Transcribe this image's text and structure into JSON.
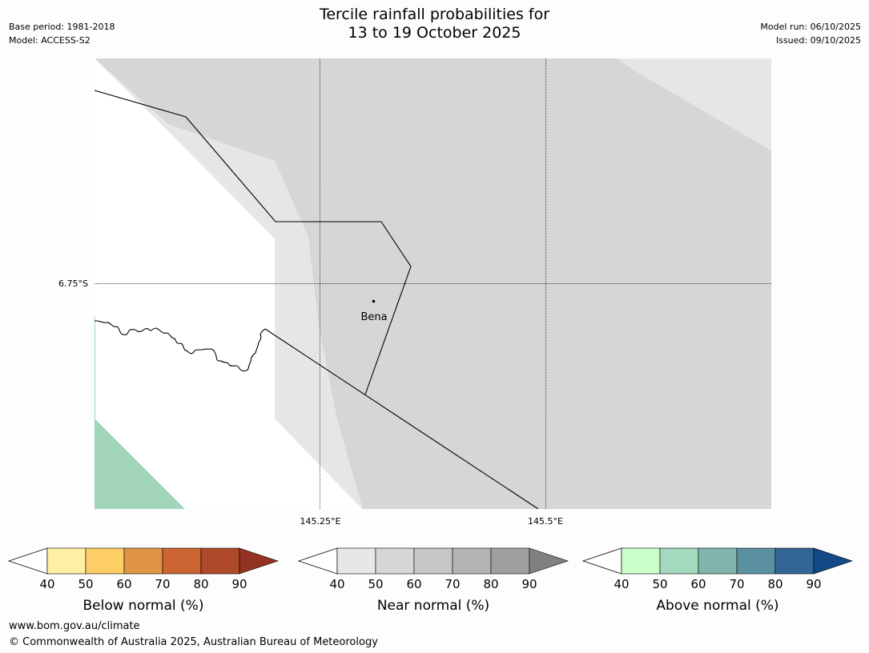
{
  "header": {
    "title_line1": "Tercile rainfall probabilities for",
    "title_line2": "13 to 19 October 2025",
    "base_period": "Base period: 1981-2018",
    "model": "Model: ACCESS-S2",
    "model_run": "Model run: 06/10/2025",
    "issued": "Issued: 09/10/2025"
  },
  "map": {
    "lat_label": "6.75°S",
    "lon_labels": [
      "145.25°E",
      "145.5°E"
    ],
    "place_label": "Bena",
    "colors": {
      "near_light": "#e6e6e6",
      "near_mid": "#d6d6d6",
      "above_green": "#a1d4bb",
      "boundary": "#000000"
    }
  },
  "colorbars": [
    {
      "id": "below",
      "caption": "Below normal (%)",
      "ticks": [
        "40",
        "50",
        "60",
        "70",
        "80",
        "90"
      ],
      "colors": [
        "#fff0a5",
        "#fece66",
        "#e09544",
        "#cc6533",
        "#ae4a29",
        "#933322"
      ]
    },
    {
      "id": "near",
      "caption": "Near normal (%)",
      "ticks": [
        "40",
        "50",
        "60",
        "70",
        "80",
        "90"
      ],
      "colors": [
        "#e7e7e7",
        "#d6d6d6",
        "#c7c7c7",
        "#b4b4b4",
        "#9f9f9f",
        "#808080"
      ]
    },
    {
      "id": "above",
      "caption": "Above normal (%)",
      "ticks": [
        "40",
        "50",
        "60",
        "70",
        "80",
        "90"
      ],
      "colors": [
        "#caffca",
        "#a3d9bc",
        "#80b4ac",
        "#5b91a0",
        "#336595",
        "#124a86"
      ]
    }
  ],
  "footer": {
    "url": "www.bom.gov.au/climate",
    "copyright": "© Commonwealth of Australia 2025, Australian Bureau of Meteorology"
  }
}
